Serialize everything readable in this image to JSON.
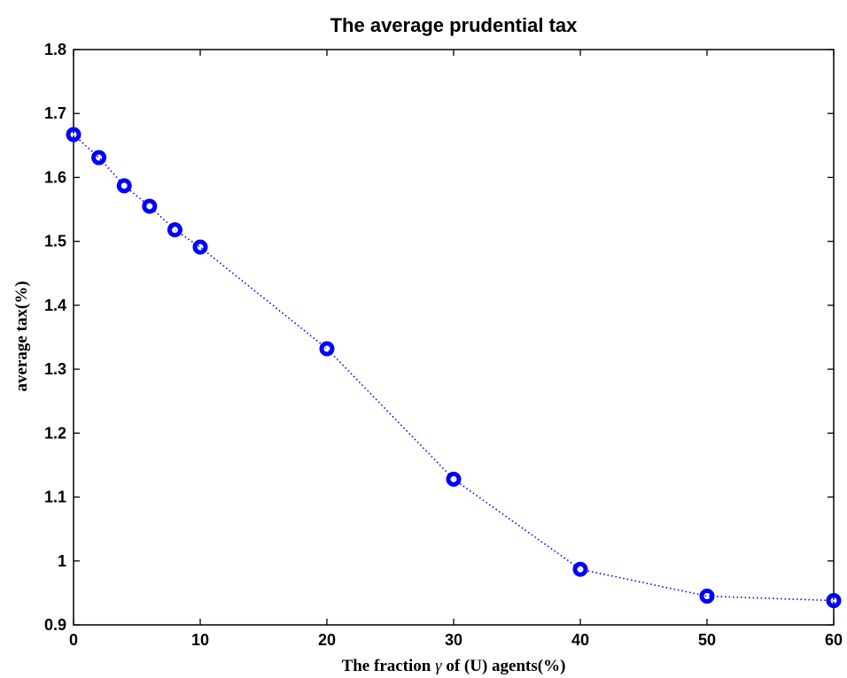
{
  "chart_data": {
    "type": "line",
    "title": "The average prudential tax",
    "xlabel_parts": [
      "The fraction ",
      "γ",
      " of (U) agents(%)"
    ],
    "ylabel": "average tax(%)",
    "xlim": [
      0,
      60
    ],
    "ylim": [
      0.9,
      1.8
    ],
    "xticks": [
      0,
      10,
      20,
      30,
      40,
      50,
      60
    ],
    "yticks": [
      0.9,
      1,
      1.1,
      1.2,
      1.3,
      1.4,
      1.5,
      1.6,
      1.7,
      1.8
    ],
    "ytick_labels": [
      "0.9",
      "1",
      "1.1",
      "1.2",
      "1.3",
      "1.4",
      "1.5",
      "1.6",
      "1.7",
      "1.8"
    ],
    "grid": false,
    "line_style": "dotted",
    "marker": "circle",
    "color": "#0000ff",
    "series": [
      {
        "x": [
          0,
          2,
          4,
          6,
          8,
          10,
          20,
          30,
          40,
          50,
          60
        ],
        "y": [
          1.667,
          1.631,
          1.587,
          1.555,
          1.518,
          1.491,
          1.332,
          1.128,
          0.987,
          0.945,
          0.938
        ]
      }
    ]
  }
}
